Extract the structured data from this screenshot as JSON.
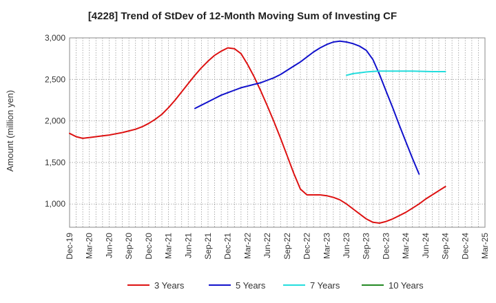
{
  "chart_data": {
    "type": "line",
    "title": "[4228]  Trend of StDev of 12-Month Moving Sum of Investing CF",
    "xlabel": "",
    "ylabel": "Amount (million yen)",
    "ylim": [
      720,
      3000
    ],
    "yticks": [
      1000,
      1500,
      2000,
      2500,
      3000
    ],
    "ytick_labels": [
      "1,000",
      "1,500",
      "2,000",
      "2,500",
      "3,000"
    ],
    "x_categories": [
      "Dec-19",
      "Mar-20",
      "Jun-20",
      "Sep-20",
      "Dec-20",
      "Mar-21",
      "Jun-21",
      "Sep-21",
      "Dec-21",
      "Mar-22",
      "Jun-22",
      "Sep-22",
      "Dec-22",
      "Mar-23",
      "Jun-23",
      "Sep-23",
      "Dec-23",
      "Mar-24",
      "Jun-24",
      "Sep-24",
      "Dec-24",
      "Mar-25"
    ],
    "grid": true,
    "legend_position": "bottom",
    "series": [
      {
        "name": "3 Years",
        "color": "#dd1111",
        "start_index": 0,
        "values": [
          1850,
          1810,
          1790,
          1800,
          1810,
          1820,
          1830,
          1845,
          1860,
          1880,
          1900,
          1930,
          1970,
          2020,
          2080,
          2160,
          2250,
          2350,
          2450,
          2550,
          2640,
          2720,
          2790,
          2840,
          2880,
          2870,
          2810,
          2680,
          2530,
          2360,
          2180,
          1990,
          1790,
          1580,
          1370,
          1180,
          1110,
          1110,
          1110,
          1100,
          1080,
          1050,
          1000,
          940,
          880,
          820,
          780,
          770,
          790,
          820,
          860,
          900,
          950,
          1000,
          1060,
          1110,
          1160,
          1210
        ]
      },
      {
        "name": "5 Years",
        "color": "#1111cc",
        "start_index": 19,
        "values": [
          2150,
          2190,
          2230,
          2270,
          2310,
          2340,
          2370,
          2400,
          2420,
          2440,
          2460,
          2490,
          2520,
          2560,
          2610,
          2660,
          2710,
          2770,
          2830,
          2880,
          2920,
          2950,
          2960,
          2950,
          2930,
          2900,
          2850,
          2740,
          2560,
          2360,
          2160,
          1950,
          1750,
          1550,
          1360
        ]
      },
      {
        "name": "7 Years",
        "color": "#22dddd",
        "start_index": 42,
        "values": [
          2550,
          2570,
          2580,
          2590,
          2595,
          2600,
          2600,
          2600,
          2600,
          2600,
          2600,
          2598,
          2596,
          2594,
          2594,
          2594
        ]
      },
      {
        "name": "10 Years",
        "color": "#228822",
        "start_index": 0,
        "values": []
      }
    ]
  }
}
